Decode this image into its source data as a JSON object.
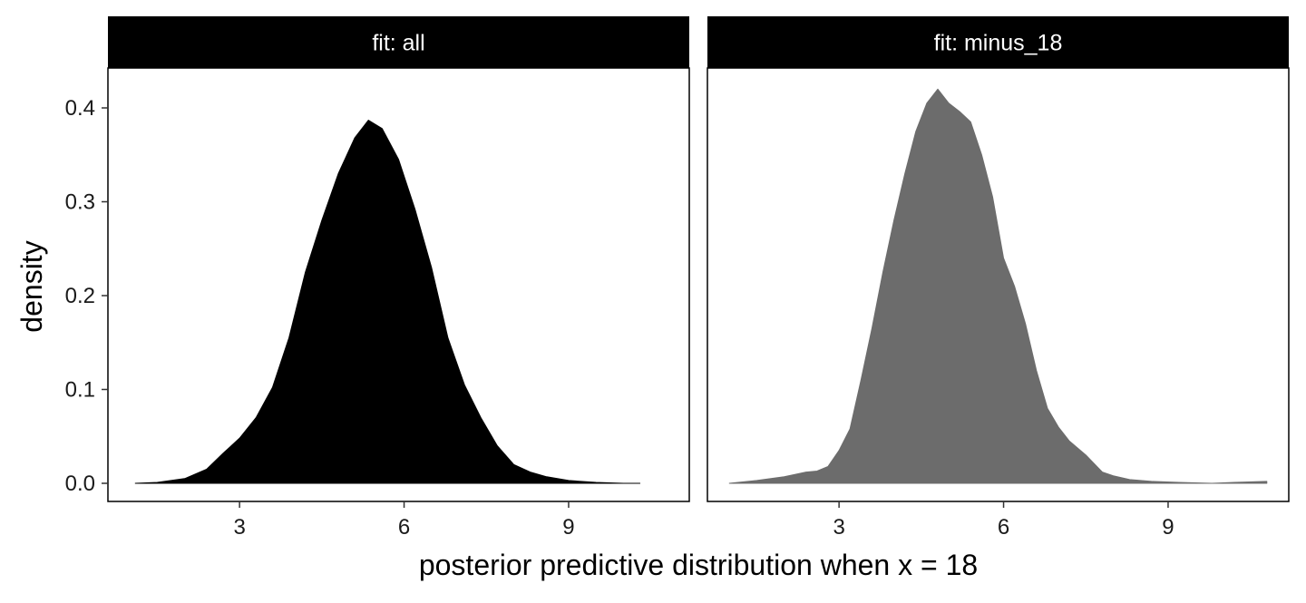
{
  "chart_data": {
    "type": "area",
    "subtype": "density",
    "xlabel": "posterior predictive distribution when x = 18",
    "ylabel": "density",
    "xlim": [
      0.6,
      11.2
    ],
    "ylim": [
      -0.02,
      0.4
    ],
    "x_ticks": [
      3,
      6,
      9
    ],
    "y_ticks": [
      0.0,
      0.1,
      0.2,
      0.3,
      0.4
    ],
    "y_tick_labels": [
      "0.0",
      "0.1",
      "0.2",
      "0.3",
      "0.4"
    ],
    "x_tick_labels": [
      "3",
      "6",
      "9"
    ],
    "panels": [
      {
        "facet_label": "fit: all",
        "fill_color": "#000000",
        "x": [
          1.1,
          1.5,
          2.0,
          2.4,
          2.7,
          3.0,
          3.3,
          3.6,
          3.9,
          4.2,
          4.5,
          4.8,
          5.1,
          5.35,
          5.6,
          5.9,
          6.2,
          6.5,
          6.8,
          7.1,
          7.4,
          7.7,
          8.0,
          8.3,
          8.6,
          9.0,
          9.5,
          10.0,
          10.3
        ],
        "y": [
          0.0,
          0.001,
          0.005,
          0.015,
          0.032,
          0.048,
          0.07,
          0.102,
          0.155,
          0.225,
          0.28,
          0.33,
          0.368,
          0.387,
          0.378,
          0.345,
          0.292,
          0.23,
          0.155,
          0.105,
          0.07,
          0.04,
          0.02,
          0.012,
          0.007,
          0.003,
          0.001,
          0.0,
          0.0
        ]
      },
      {
        "facet_label": "fit: minus_18",
        "fill_color": "#6c6c6c",
        "x": [
          1.0,
          1.5,
          2.0,
          2.4,
          2.6,
          2.8,
          3.0,
          3.2,
          3.4,
          3.6,
          3.8,
          4.0,
          4.2,
          4.4,
          4.6,
          4.8,
          5.0,
          5.2,
          5.4,
          5.6,
          5.8,
          6.0,
          6.2,
          6.4,
          6.6,
          6.8,
          7.0,
          7.2,
          7.5,
          7.8,
          8.0,
          8.3,
          8.7,
          9.2,
          9.8,
          10.2,
          10.8
        ],
        "y": [
          0.0,
          0.003,
          0.007,
          0.012,
          0.013,
          0.018,
          0.035,
          0.058,
          0.11,
          0.165,
          0.225,
          0.28,
          0.33,
          0.375,
          0.405,
          0.42,
          0.405,
          0.396,
          0.385,
          0.35,
          0.305,
          0.24,
          0.21,
          0.17,
          0.12,
          0.08,
          0.06,
          0.045,
          0.03,
          0.012,
          0.008,
          0.004,
          0.002,
          0.001,
          0.0,
          0.001,
          0.002
        ]
      }
    ]
  }
}
